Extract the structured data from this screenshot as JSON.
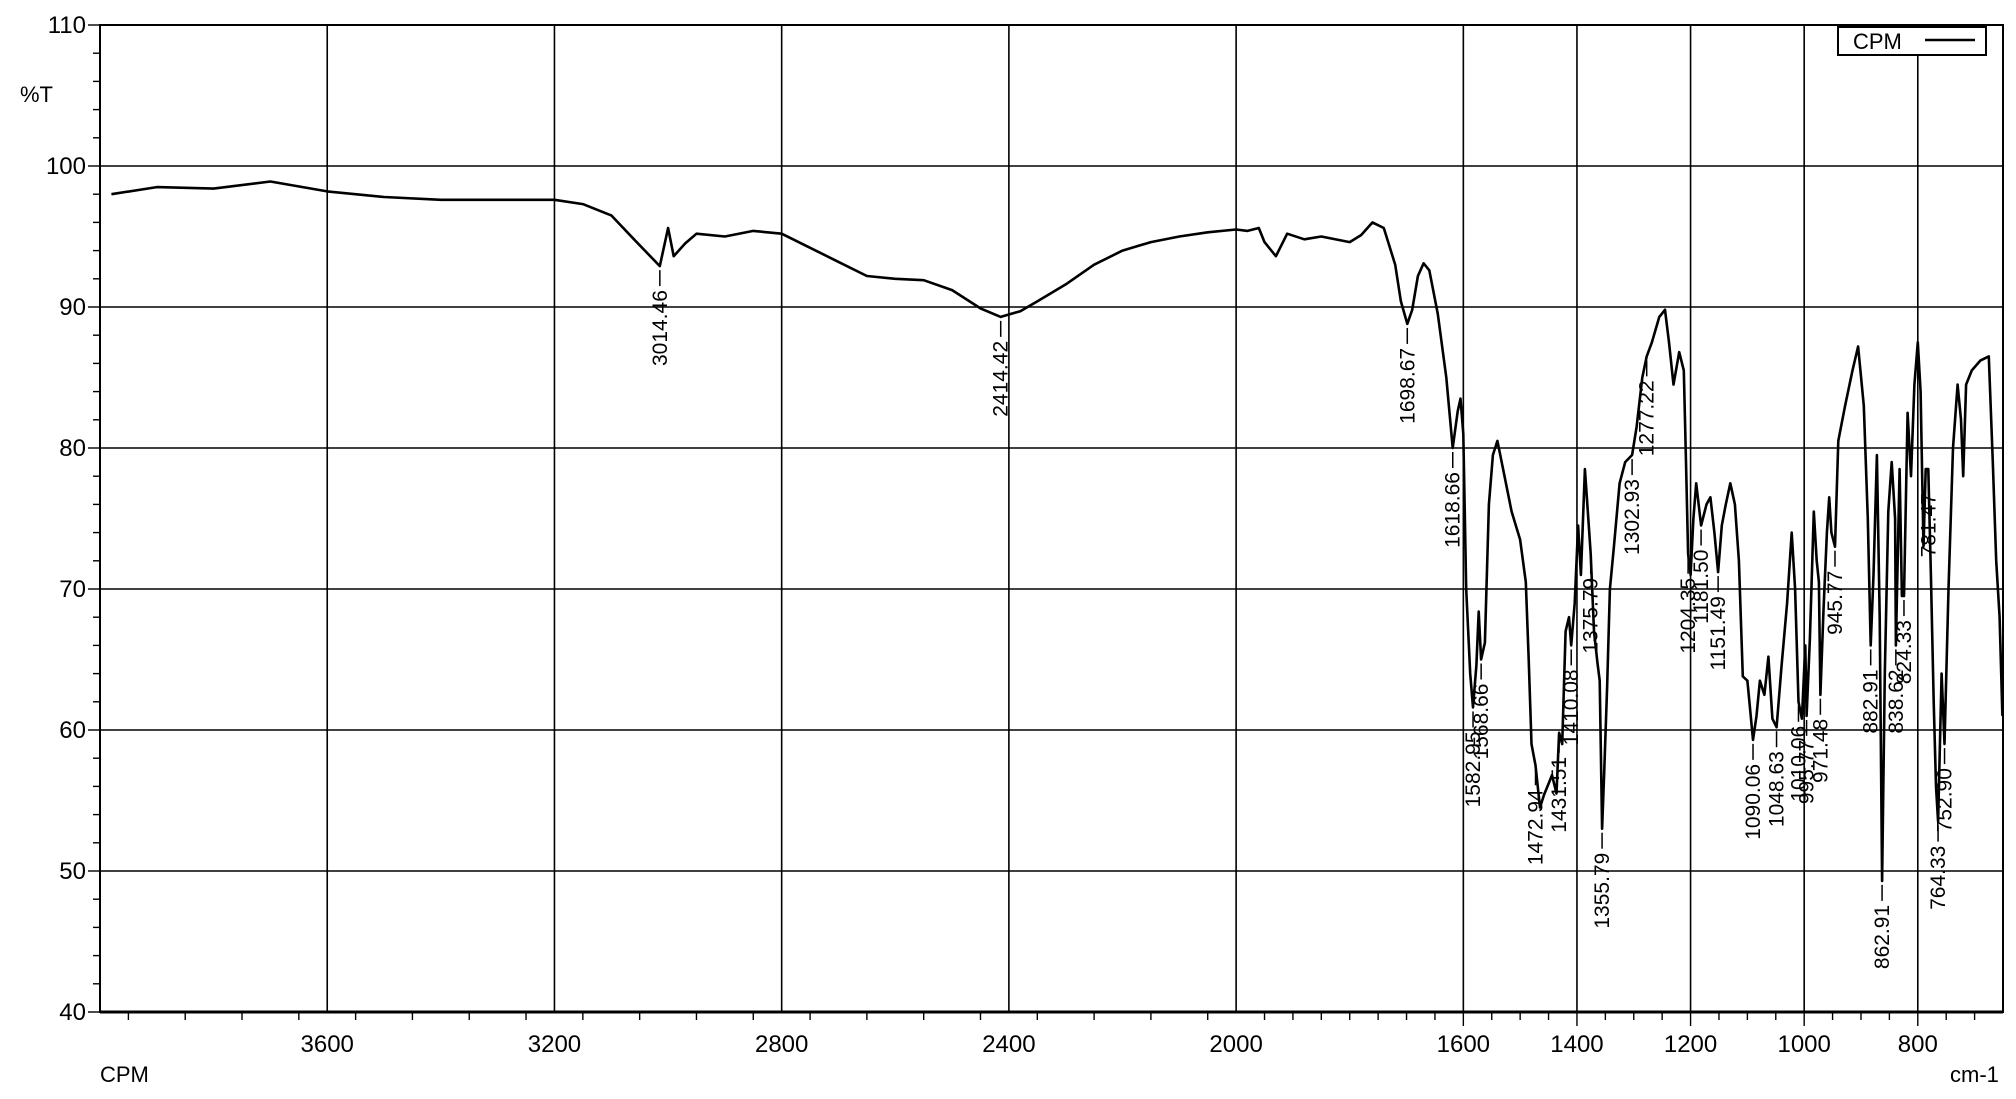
{
  "chart_data": {
    "type": "line",
    "title": "",
    "xlabel": "cm-1",
    "ylabel": "%T",
    "sample_label": "CPM",
    "xlim": [
      4000,
      650
    ],
    "ylim": [
      40,
      110
    ],
    "x_ticks": [
      3600,
      3200,
      2800,
      2400,
      2000,
      1600,
      1400,
      1200,
      1000,
      800
    ],
    "y_ticks": [
      110,
      100,
      90,
      80,
      70,
      60,
      50,
      40
    ],
    "grid": true,
    "legend": {
      "position": "top-right",
      "entries": [
        "CPM"
      ]
    },
    "line_color": "#000000",
    "series": [
      {
        "name": "CPM",
        "points": [
          [
            3980,
            98.0
          ],
          [
            3900,
            98.5
          ],
          [
            3800,
            98.4
          ],
          [
            3700,
            98.9
          ],
          [
            3600,
            98.2
          ],
          [
            3500,
            97.8
          ],
          [
            3400,
            97.6
          ],
          [
            3300,
            97.6
          ],
          [
            3200,
            97.6
          ],
          [
            3150,
            97.3
          ],
          [
            3100,
            96.5
          ],
          [
            3060,
            94.8
          ],
          [
            3014.46,
            92.9
          ],
          [
            3000,
            95.6
          ],
          [
            2990,
            93.6
          ],
          [
            2970,
            94.5
          ],
          [
            2950,
            95.2
          ],
          [
            2900,
            95.0
          ],
          [
            2850,
            95.4
          ],
          [
            2800,
            95.2
          ],
          [
            2750,
            94.2
          ],
          [
            2700,
            93.2
          ],
          [
            2650,
            92.2
          ],
          [
            2600,
            92.0
          ],
          [
            2550,
            91.9
          ],
          [
            2500,
            91.2
          ],
          [
            2450,
            89.9
          ],
          [
            2414.42,
            89.3
          ],
          [
            2380,
            89.7
          ],
          [
            2350,
            90.4
          ],
          [
            2300,
            91.6
          ],
          [
            2250,
            93.0
          ],
          [
            2200,
            94.0
          ],
          [
            2150,
            94.6
          ],
          [
            2100,
            95.0
          ],
          [
            2050,
            95.3
          ],
          [
            2000,
            95.5
          ],
          [
            1980,
            95.4
          ],
          [
            1960,
            95.6
          ],
          [
            1950,
            94.6
          ],
          [
            1930,
            93.6
          ],
          [
            1910,
            95.2
          ],
          [
            1880,
            94.8
          ],
          [
            1850,
            95.0
          ],
          [
            1800,
            94.6
          ],
          [
            1780,
            95.1
          ],
          [
            1760,
            96.0
          ],
          [
            1740,
            95.6
          ],
          [
            1720,
            93.0
          ],
          [
            1710,
            90.4
          ],
          [
            1698.67,
            88.8
          ],
          [
            1690,
            89.8
          ],
          [
            1680,
            92.2
          ],
          [
            1670,
            93.1
          ],
          [
            1660,
            92.6
          ],
          [
            1645,
            89.5
          ],
          [
            1630,
            85.0
          ],
          [
            1618.66,
            80.0
          ],
          [
            1610,
            82.6
          ],
          [
            1605,
            83.5
          ],
          [
            1600,
            81.0
          ],
          [
            1595,
            70.0
          ],
          [
            1588,
            64.0
          ],
          [
            1582.95,
            61.6
          ],
          [
            1577,
            64.6
          ],
          [
            1573,
            68.4
          ],
          [
            1568.66,
            65.0
          ],
          [
            1562,
            66.2
          ],
          [
            1555,
            76.0
          ],
          [
            1548,
            79.5
          ],
          [
            1540,
            80.5
          ],
          [
            1530,
            78.5
          ],
          [
            1515,
            75.5
          ],
          [
            1500,
            73.5
          ],
          [
            1490,
            70.5
          ],
          [
            1485,
            65.0
          ],
          [
            1480,
            59.0
          ],
          [
            1472.94,
            57.5
          ],
          [
            1465,
            54.5
          ],
          [
            1458,
            55.4
          ],
          [
            1450,
            56.2
          ],
          [
            1444,
            56.8
          ],
          [
            1436,
            55.5
          ],
          [
            1431.51,
            59.8
          ],
          [
            1426,
            59.0
          ],
          [
            1420,
            67.0
          ],
          [
            1414,
            68.0
          ],
          [
            1410.08,
            66.0
          ],
          [
            1404,
            69.0
          ],
          [
            1398,
            74.5
          ],
          [
            1393,
            71.0
          ],
          [
            1386,
            78.5
          ],
          [
            1380,
            75.0
          ],
          [
            1375.79,
            72.5
          ],
          [
            1370,
            67.0
          ],
          [
            1364,
            64.8
          ],
          [
            1360,
            63.5
          ],
          [
            1355.79,
            53.0
          ],
          [
            1352,
            57.0
          ],
          [
            1347,
            63.0
          ],
          [
            1342,
            70.0
          ],
          [
            1335,
            73.0
          ],
          [
            1325,
            77.5
          ],
          [
            1315,
            79.0
          ],
          [
            1302.93,
            79.5
          ],
          [
            1295,
            81.5
          ],
          [
            1285,
            85.0
          ],
          [
            1277.22,
            86.5
          ],
          [
            1268,
            87.5
          ],
          [
            1255,
            89.3
          ],
          [
            1245,
            89.8
          ],
          [
            1238,
            87.5
          ],
          [
            1230,
            84.5
          ],
          [
            1220,
            86.8
          ],
          [
            1212,
            85.5
          ],
          [
            1208,
            79.0
          ],
          [
            1204.35,
            72.5
          ],
          [
            1200,
            71.0
          ],
          [
            1195,
            75.0
          ],
          [
            1190,
            77.5
          ],
          [
            1181.5,
            74.5
          ],
          [
            1172,
            76.0
          ],
          [
            1165,
            76.5
          ],
          [
            1158,
            74.0
          ],
          [
            1151.49,
            71.2
          ],
          [
            1145,
            74.5
          ],
          [
            1138,
            76.0
          ],
          [
            1130,
            77.5
          ],
          [
            1122,
            76.0
          ],
          [
            1115,
            72.0
          ],
          [
            1108,
            63.8
          ],
          [
            1100,
            63.5
          ],
          [
            1090.06,
            59.3
          ],
          [
            1084,
            61.0
          ],
          [
            1078,
            63.5
          ],
          [
            1070,
            62.5
          ],
          [
            1063,
            65.2
          ],
          [
            1056,
            60.8
          ],
          [
            1048.63,
            60.2
          ],
          [
            1040,
            64.5
          ],
          [
            1030,
            69.0
          ],
          [
            1022,
            74.0
          ],
          [
            1016,
            70.0
          ],
          [
            1010.06,
            62.0
          ],
          [
            1004,
            60.8
          ],
          [
            998,
            66.0
          ],
          [
            995.77,
            61.0
          ],
          [
            990,
            66.5
          ],
          [
            983,
            75.5
          ],
          [
            978,
            72.0
          ],
          [
            974,
            70.5
          ],
          [
            971.48,
            62.5
          ],
          [
            966,
            68.5
          ],
          [
            960,
            74.0
          ],
          [
            956,
            76.5
          ],
          [
            952,
            74.0
          ],
          [
            945.77,
            73.0
          ],
          [
            940,
            80.5
          ],
          [
            928,
            83.0
          ],
          [
            915,
            85.5
          ],
          [
            905,
            87.2
          ],
          [
            895,
            83.0
          ],
          [
            888,
            75.0
          ],
          [
            882.91,
            66.0
          ],
          [
            878,
            71.0
          ],
          [
            872,
            79.5
          ],
          [
            867,
            68.0
          ],
          [
            862.91,
            49.3
          ],
          [
            858,
            64.0
          ],
          [
            852,
            75.5
          ],
          [
            846,
            79.0
          ],
          [
            840,
            75.0
          ],
          [
            838.62,
            66.0
          ],
          [
            832,
            78.5
          ],
          [
            828,
            69.5
          ],
          [
            824.33,
            69.5
          ],
          [
            818,
            82.5
          ],
          [
            812,
            78.0
          ],
          [
            806,
            84.5
          ],
          [
            800,
            87.5
          ],
          [
            795,
            84.0
          ],
          [
            790,
            73.0
          ],
          [
            786,
            78.5
          ],
          [
            781.47,
            78.5
          ],
          [
            777,
            71.0
          ],
          [
            772,
            62.0
          ],
          [
            768,
            56.0
          ],
          [
            764.33,
            53.5
          ],
          [
            758,
            64.0
          ],
          [
            752.9,
            59.0
          ],
          [
            746,
            70.0
          ],
          [
            738,
            80.0
          ],
          [
            730,
            84.5
          ],
          [
            724,
            82.0
          ],
          [
            720,
            78.0
          ],
          [
            715,
            84.5
          ],
          [
            705,
            85.5
          ],
          [
            690,
            86.2
          ],
          [
            675,
            86.5
          ],
          [
            668,
            79.0
          ],
          [
            662,
            72.0
          ],
          [
            656,
            68.0
          ],
          [
            651,
            61.0
          ]
        ]
      }
    ],
    "annotations": [
      {
        "text": "3014.46",
        "x": 3014.46,
        "y": 92.9
      },
      {
        "text": "2414.42",
        "x": 2414.42,
        "y": 89.3
      },
      {
        "text": "1698.67",
        "x": 1698.67,
        "y": 88.8
      },
      {
        "text": "1618.66",
        "x": 1618.66,
        "y": 80.0
      },
      {
        "text": "1582.95",
        "x": 1582.95,
        "y": 61.6
      },
      {
        "text": "1568.66",
        "x": 1568.66,
        "y": 65.0
      },
      {
        "text": "1472.94",
        "x": 1472.94,
        "y": 57.5
      },
      {
        "text": "1431.51",
        "x": 1431.51,
        "y": 59.8
      },
      {
        "text": "1410.08",
        "x": 1410.08,
        "y": 66.0
      },
      {
        "text": "1375.79",
        "x": 1375.79,
        "y": 72.5
      },
      {
        "text": "1355.79",
        "x": 1355.79,
        "y": 53.0
      },
      {
        "text": "1302.93",
        "x": 1302.93,
        "y": 79.5
      },
      {
        "text": "1277.22",
        "x": 1277.22,
        "y": 86.5
      },
      {
        "text": "1204.35",
        "x": 1204.35,
        "y": 72.5
      },
      {
        "text": "1181.50",
        "x": 1181.5,
        "y": 74.5
      },
      {
        "text": "1151.49",
        "x": 1151.49,
        "y": 71.2
      },
      {
        "text": "1090.06",
        "x": 1090.06,
        "y": 59.3
      },
      {
        "text": "1048.63",
        "x": 1048.63,
        "y": 60.2
      },
      {
        "text": "1010.06",
        "x": 1010.06,
        "y": 62.0
      },
      {
        "text": "995.77",
        "x": 995.77,
        "y": 61.0
      },
      {
        "text": "971.48",
        "x": 971.48,
        "y": 62.5
      },
      {
        "text": "945.77",
        "x": 945.77,
        "y": 73.0
      },
      {
        "text": "882.91",
        "x": 882.91,
        "y": 66.0
      },
      {
        "text": "862.91",
        "x": 862.91,
        "y": 49.3
      },
      {
        "text": "838.62",
        "x": 838.62,
        "y": 66.0
      },
      {
        "text": "824.33",
        "x": 824.33,
        "y": 69.5
      },
      {
        "text": "781.47",
        "x": 781.47,
        "y": 78.5
      },
      {
        "text": "764.33",
        "x": 764.33,
        "y": 53.5
      },
      {
        "text": "752.90",
        "x": 752.9,
        "y": 59.0
      }
    ]
  }
}
